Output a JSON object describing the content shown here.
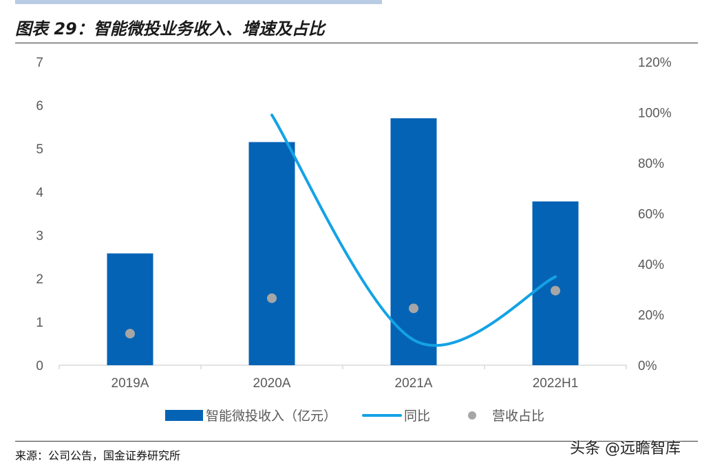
{
  "figure": {
    "title": "图表 29：智能微投业务收入、增速及占比",
    "source": "来源：公司公告，国金证券研究所",
    "watermark": "头条 @远瞻智库"
  },
  "colors": {
    "bar": "#0563b5",
    "line": "#13a2e5",
    "dot": "#a6a6a6",
    "axis_text": "#595959",
    "axis_line": "#d9d9d9"
  },
  "chart_data": {
    "type": "bar",
    "categories": [
      "2019A",
      "2020A",
      "2021A",
      "2022H1"
    ],
    "series": [
      {
        "name": "智能微投收入（亿元）",
        "type": "bar",
        "axis": "left",
        "values": [
          2.58,
          5.15,
          5.7,
          3.78
        ]
      },
      {
        "name": "同比",
        "type": "line",
        "axis": "right",
        "values": [
          null,
          0.99,
          0.1,
          0.35
        ]
      },
      {
        "name": "营收占比",
        "type": "scatter",
        "axis": "right",
        "values": [
          0.125,
          0.265,
          0.225,
          0.295
        ]
      }
    ],
    "left_axis": {
      "min": 0,
      "max": 7,
      "ticks": [
        "0",
        "1",
        "2",
        "3",
        "4",
        "5",
        "6",
        "7"
      ]
    },
    "right_axis": {
      "min": 0,
      "max": 1.2,
      "ticks": [
        "0%",
        "20%",
        "40%",
        "60%",
        "80%",
        "100%",
        "120%"
      ]
    },
    "legend": {
      "position": "bottom"
    },
    "grid": false
  }
}
